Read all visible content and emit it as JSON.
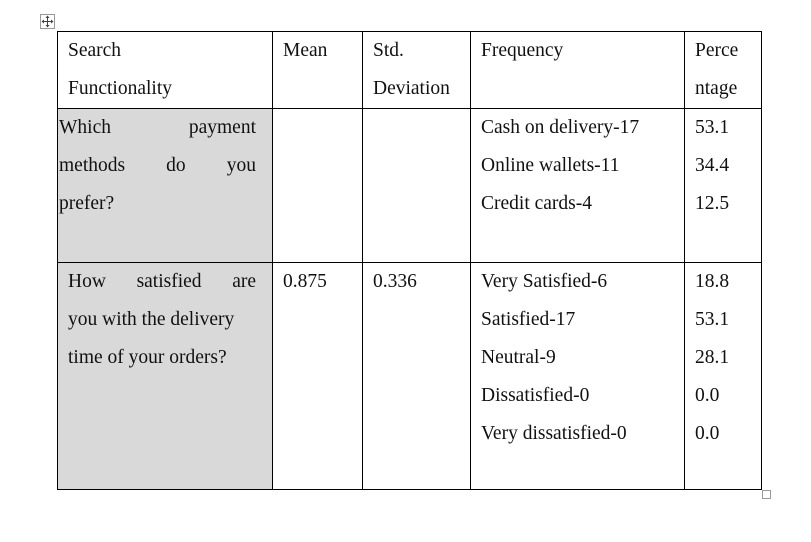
{
  "table": {
    "headers": {
      "question": [
        "Search",
        "Functionality"
      ],
      "mean": "Mean",
      "std": [
        "Std.",
        "Deviation"
      ],
      "frequency": "Frequency",
      "percentage": [
        "Perce",
        "ntage"
      ]
    },
    "rows": [
      {
        "question_lines": [
          [
            "Which",
            "payment"
          ],
          [
            "methods",
            "do",
            "you"
          ],
          [
            "prefer?"
          ]
        ],
        "mean": "",
        "std": "",
        "frequencies": [
          "Cash on delivery-17",
          "Online wallets-11",
          "Credit cards-4"
        ],
        "percentages": [
          "53.1",
          "34.4",
          "12.5"
        ]
      },
      {
        "question_lines": [
          [
            "How",
            "satisfied",
            "are"
          ],
          [
            "you with the delivery"
          ],
          [
            "time of your orders?"
          ]
        ],
        "mean": "0.875",
        "std": "0.336",
        "frequencies": [
          "Very Satisfied-6",
          "Satisfied-17",
          "Neutral-9",
          "Dissatisfied-0",
          "Very dissatisfied-0"
        ],
        "percentages": [
          "18.8",
          "53.1",
          "28.1",
          "0.0",
          "0.0"
        ]
      }
    ]
  }
}
